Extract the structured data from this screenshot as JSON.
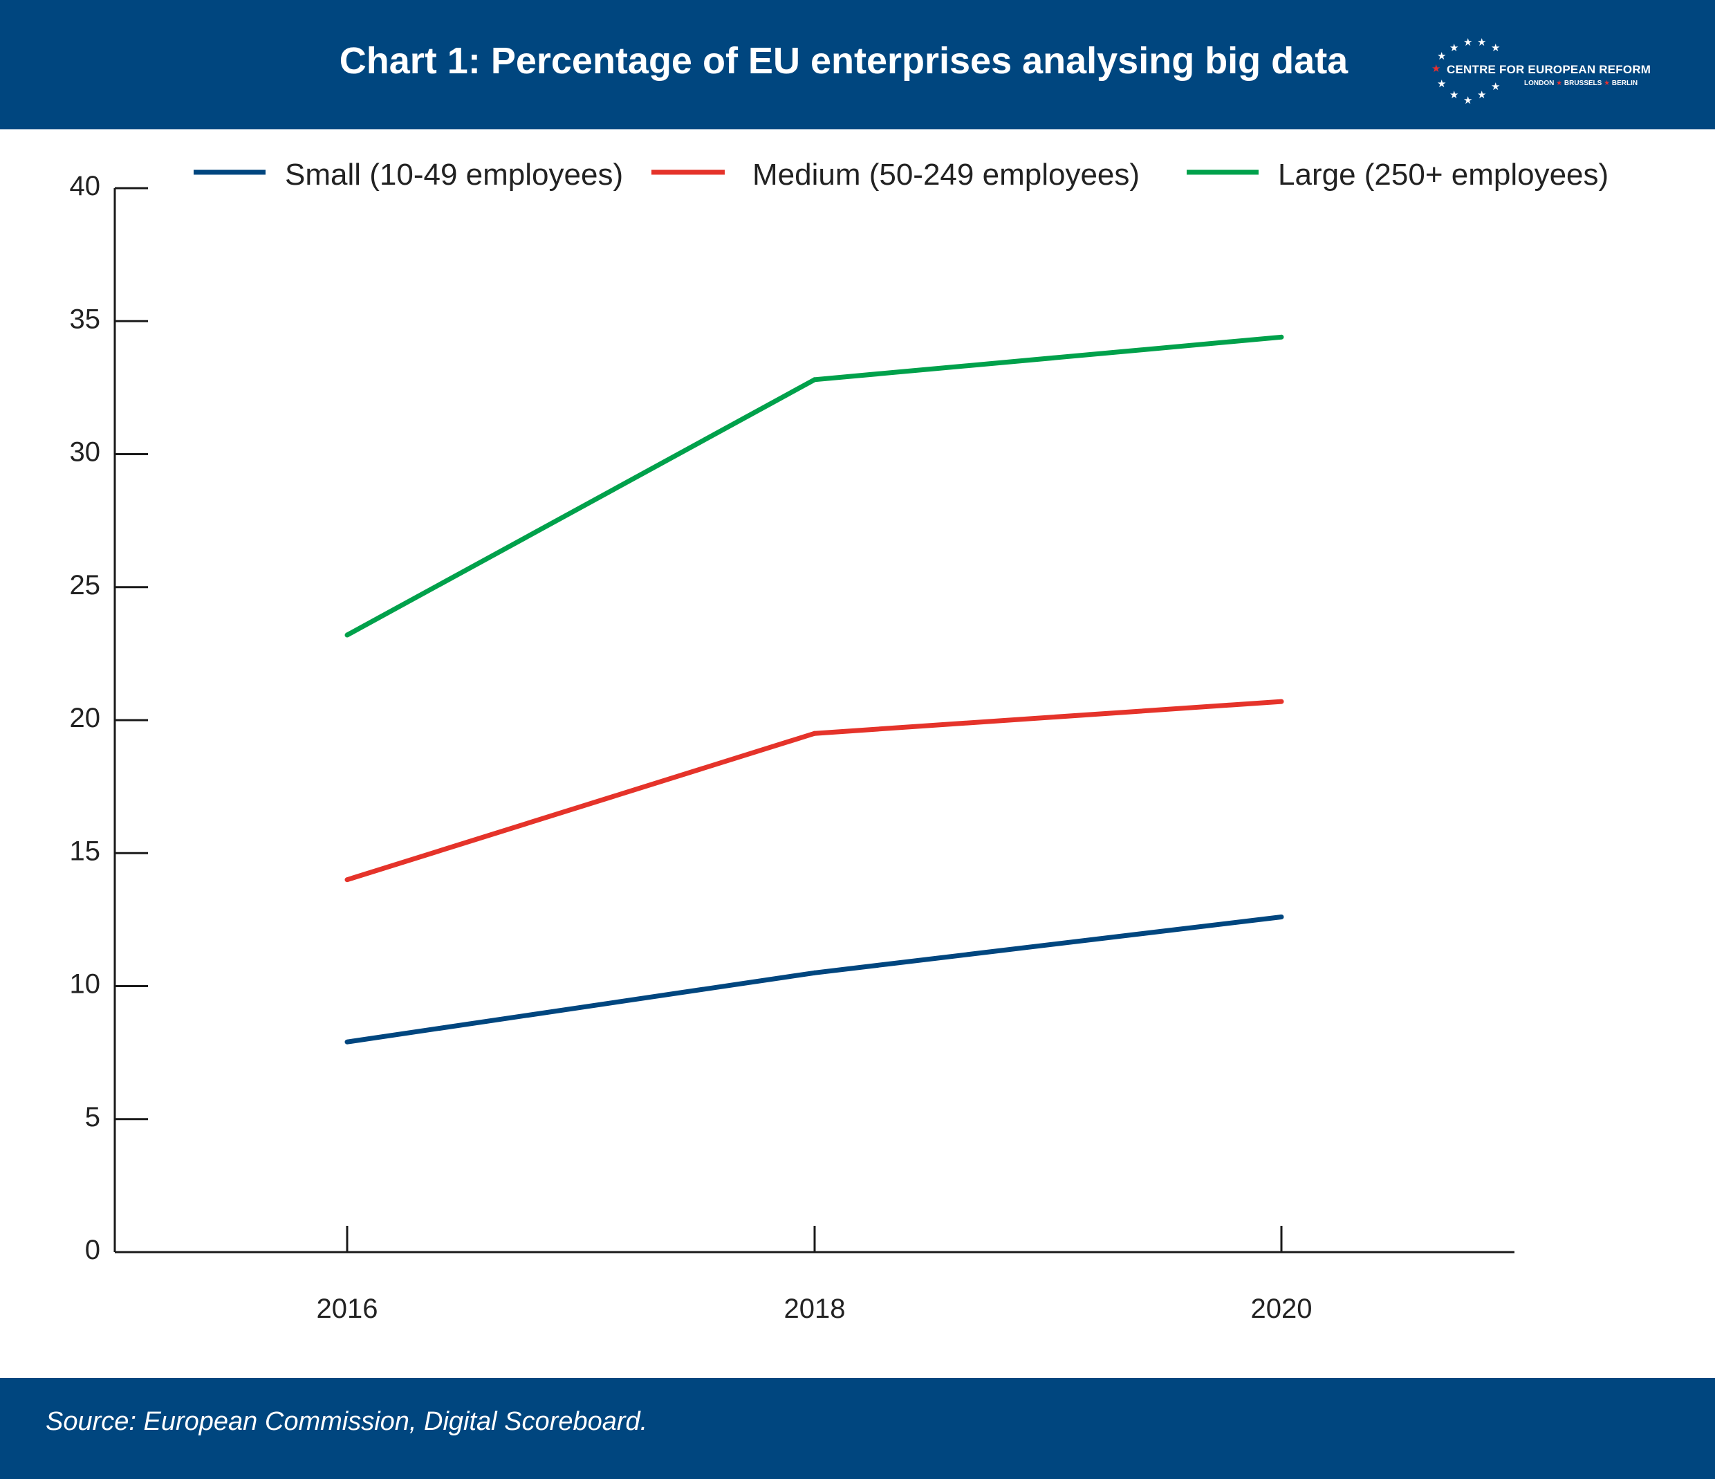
{
  "header": {
    "title": "Chart 1: Percentage of EU enterprises analysing big data",
    "logo": {
      "name": "CENTRE FOR EUROPEAN REFORM",
      "cities": [
        "LONDON",
        "BRUSSELS",
        "BERLIN"
      ]
    }
  },
  "footer": {
    "source": "Source: European Commission, Digital Scoreboard."
  },
  "chart_data": {
    "type": "line",
    "title": "Chart 1: Percentage of EU enterprises analysing big data",
    "xlabel": "",
    "ylabel": "",
    "x": [
      "2016",
      "2018",
      "2020"
    ],
    "ylim": [
      0,
      40
    ],
    "yticks": [
      0,
      5,
      10,
      15,
      20,
      25,
      30,
      35,
      40
    ],
    "grid": false,
    "legend_position": "top",
    "series": [
      {
        "name": "Small (10-49 employees)",
        "color": "#00467f",
        "values": [
          7.9,
          10.5,
          12.6
        ]
      },
      {
        "name": "Medium (50-249 employees)",
        "color": "#e5332a",
        "values": [
          14.0,
          19.5,
          20.7
        ]
      },
      {
        "name": "Large (250+ employees)",
        "color": "#00a14b",
        "values": [
          23.2,
          32.8,
          34.4
        ]
      }
    ]
  }
}
